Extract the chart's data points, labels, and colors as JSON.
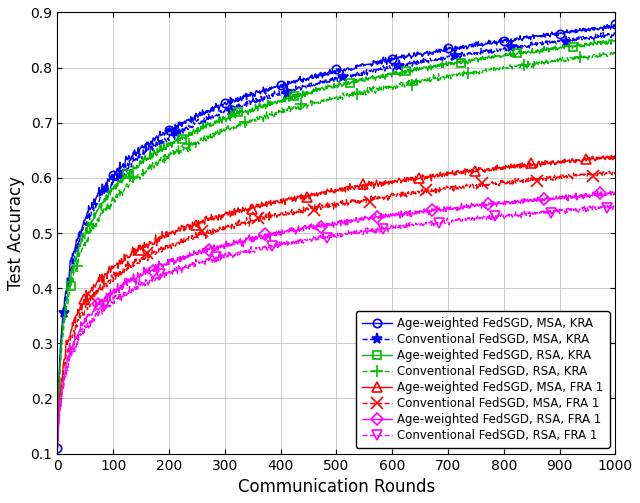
{
  "title": "",
  "xlabel": "Communication Rounds",
  "ylabel": "Test Accuracy",
  "xlim": [
    0,
    1000
  ],
  "ylim": [
    0.1,
    0.9
  ],
  "xticks": [
    0,
    100,
    200,
    300,
    400,
    500,
    600,
    700,
    800,
    900,
    1000
  ],
  "yticks": [
    0.1,
    0.2,
    0.3,
    0.4,
    0.5,
    0.6,
    0.7,
    0.8,
    0.9
  ],
  "series": [
    {
      "label": "Age-weighted FedSGD, MSA, KRA",
      "color": "#0000FF",
      "linestyle": "-",
      "marker": "o",
      "markevery": 100,
      "markersize": 6,
      "final_val": 0.875,
      "init_val": 0.11,
      "k": 0.022,
      "noise": 0.004,
      "seed": 10
    },
    {
      "label": "Conventional FedSGD, MSA, KRA",
      "color": "#0000FF",
      "linestyle": "--",
      "marker": "*",
      "markevery": 100,
      "markersize": 8,
      "final_val": 0.86,
      "init_val": 0.11,
      "k": 0.021,
      "noise": 0.004,
      "seed": 20
    },
    {
      "label": "Age-weighted FedSGD, RSA, KRA",
      "color": "#00BB00",
      "linestyle": "-",
      "marker": "s",
      "markevery": 100,
      "markersize": 6,
      "final_val": 0.848,
      "init_val": 0.11,
      "k": 0.018,
      "noise": 0.004,
      "seed": 30
    },
    {
      "label": "Conventional FedSGD, RSA, KRA",
      "color": "#00BB00",
      "linestyle": "--",
      "marker": "+",
      "markevery": 100,
      "markersize": 9,
      "final_val": 0.825,
      "init_val": 0.11,
      "k": 0.016,
      "noise": 0.004,
      "seed": 40
    },
    {
      "label": "Age-weighted FedSGD, MSA, FRA 1",
      "color": "#FF0000",
      "linestyle": "-",
      "marker": "^",
      "markevery": 100,
      "markersize": 7,
      "final_val": 0.638,
      "init_val": 0.11,
      "k": 0.014,
      "noise": 0.004,
      "seed": 50
    },
    {
      "label": "Conventional FedSGD, MSA, FRA 1",
      "color": "#FF0000",
      "linestyle": "--",
      "marker": "x",
      "markevery": 100,
      "markersize": 8,
      "final_val": 0.61,
      "init_val": 0.11,
      "k": 0.013,
      "noise": 0.004,
      "seed": 60
    },
    {
      "label": "Age-weighted FedSGD, RSA, FRA 1",
      "color": "#FF00FF",
      "linestyle": "-",
      "marker": "D",
      "markevery": 100,
      "markersize": 6,
      "final_val": 0.572,
      "init_val": 0.11,
      "k": 0.012,
      "noise": 0.004,
      "seed": 70
    },
    {
      "label": "Conventional FedSGD, RSA, FRA 1",
      "color": "#FF00FF",
      "linestyle": "--",
      "marker": "v",
      "markevery": 100,
      "markersize": 7,
      "final_val": 0.548,
      "init_val": 0.11,
      "k": 0.011,
      "noise": 0.004,
      "seed": 80
    }
  ],
  "legend_loc": "lower right",
  "legend_fontsize": 8.5,
  "figsize": [
    6.4,
    5.03
  ],
  "dpi": 100
}
